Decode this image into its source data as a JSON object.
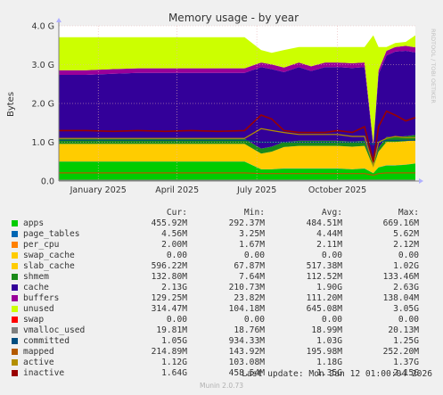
{
  "colors": {
    "background": "#f0f0f0",
    "plot_background": "#ffffff",
    "grid": "#e8b4b4",
    "axis": "#808080"
  },
  "chart_data": {
    "type": "area",
    "title": "Memory usage - by year",
    "ylabel": "Bytes",
    "side_label": "RRDTOOL / TOBI OETIKER",
    "y_ticks": [
      "0.0",
      "1.0 G",
      "2.0 G",
      "3.0 G",
      "4.0 G"
    ],
    "y_tick_values": [
      0,
      1,
      2,
      3,
      4
    ],
    "ylim": [
      0,
      4
    ],
    "y_unit": "GB",
    "x_range": [
      "2024-12-01",
      "2026-01-12"
    ],
    "x_ticks": [
      {
        "label": "January 2025",
        "date": "2025-01-15"
      },
      {
        "label": "April 2025",
        "date": "2025-04-15"
      },
      {
        "label": "July 2025",
        "date": "2025-07-15"
      },
      {
        "label": "October 2025",
        "date": "2025-10-15"
      }
    ],
    "x": [
      "2024-12-01",
      "2025-01-01",
      "2025-02-01",
      "2025-03-01",
      "2025-04-01",
      "2025-05-01",
      "2025-06-01",
      "2025-07-01",
      "2025-07-20",
      "2025-08-01",
      "2025-08-15",
      "2025-09-01",
      "2025-09-15",
      "2025-10-01",
      "2025-10-15",
      "2025-11-01",
      "2025-11-15",
      "2025-11-25",
      "2025-12-01",
      "2025-12-10",
      "2025-12-20",
      "2026-01-01",
      "2026-01-12"
    ],
    "series": [
      {
        "name": "apps",
        "color": "#00cc00",
        "values": [
          0.5,
          0.5,
          0.5,
          0.5,
          0.5,
          0.5,
          0.5,
          0.5,
          0.3,
          0.3,
          0.32,
          0.32,
          0.32,
          0.32,
          0.32,
          0.3,
          0.32,
          0.2,
          0.35,
          0.4,
          0.4,
          0.42,
          0.45
        ]
      },
      {
        "name": "page_tables",
        "color": "#0066b3",
        "values": [
          0.004,
          0.004,
          0.004,
          0.004,
          0.004,
          0.004,
          0.004,
          0.004,
          0.004,
          0.004,
          0.004,
          0.004,
          0.004,
          0.004,
          0.004,
          0.004,
          0.004,
          0.004,
          0.004,
          0.004,
          0.004,
          0.004,
          0.004
        ]
      },
      {
        "name": "per_cpu",
        "color": "#ff8000",
        "values": [
          0.002,
          0.002,
          0.002,
          0.002,
          0.002,
          0.002,
          0.002,
          0.002,
          0.002,
          0.002,
          0.002,
          0.002,
          0.002,
          0.002,
          0.002,
          0.002,
          0.002,
          0.002,
          0.002,
          0.002,
          0.002,
          0.002,
          0.002
        ]
      },
      {
        "name": "swap_cache",
        "color": "#ffcc00",
        "values": [
          0,
          0,
          0,
          0,
          0,
          0,
          0,
          0,
          0,
          0,
          0,
          0,
          0,
          0,
          0,
          0,
          0,
          0,
          0,
          0,
          0,
          0,
          0
        ]
      },
      {
        "name": "slab_cache",
        "color": "#ffcc00",
        "values": [
          0.45,
          0.45,
          0.45,
          0.45,
          0.45,
          0.45,
          0.45,
          0.45,
          0.4,
          0.45,
          0.55,
          0.58,
          0.58,
          0.58,
          0.58,
          0.58,
          0.58,
          0.15,
          0.4,
          0.6,
          0.6,
          0.6,
          0.6
        ]
      },
      {
        "name": "shmem",
        "color": "#1a8a1a",
        "values": [
          0.13,
          0.13,
          0.13,
          0.13,
          0.13,
          0.13,
          0.13,
          0.13,
          0.13,
          0.13,
          0.13,
          0.13,
          0.13,
          0.13,
          0.13,
          0.13,
          0.13,
          0.05,
          0.1,
          0.13,
          0.13,
          0.13,
          0.13
        ]
      },
      {
        "name": "cache",
        "color": "#330099",
        "values": [
          1.65,
          1.65,
          1.68,
          1.7,
          1.7,
          1.7,
          1.7,
          1.7,
          2.1,
          2.0,
          1.8,
          1.9,
          1.8,
          1.9,
          1.9,
          1.9,
          1.9,
          0.5,
          1.9,
          2.1,
          2.2,
          2.2,
          2.13
        ]
      },
      {
        "name": "buffers",
        "color": "#990099",
        "values": [
          0.12,
          0.12,
          0.12,
          0.12,
          0.12,
          0.12,
          0.12,
          0.12,
          0.12,
          0.12,
          0.12,
          0.12,
          0.12,
          0.12,
          0.12,
          0.12,
          0.12,
          0.05,
          0.1,
          0.12,
          0.12,
          0.13,
          0.13
        ]
      },
      {
        "name": "unused",
        "color": "#ccff00",
        "values": [
          0.85,
          0.85,
          0.82,
          0.8,
          0.8,
          0.8,
          0.8,
          0.8,
          0.32,
          0.3,
          0.45,
          0.4,
          0.5,
          0.4,
          0.4,
          0.42,
          0.4,
          2.8,
          0.6,
          0.1,
          0.1,
          0.1,
          0.31
        ]
      },
      {
        "name": "swap",
        "color": "#ff0000",
        "values": [
          0,
          0,
          0,
          0,
          0,
          0,
          0,
          0,
          0,
          0,
          0,
          0,
          0,
          0,
          0,
          0,
          0,
          0,
          0,
          0,
          0,
          0,
          0
        ]
      },
      {
        "name": "vmalloc_used",
        "color": "#808080",
        "values": [
          0.02,
          0.02,
          0.02,
          0.02,
          0.02,
          0.02,
          0.02,
          0.02,
          0.02,
          0.02,
          0.02,
          0.02,
          0.02,
          0.02,
          0.02,
          0.02,
          0.02,
          0.02,
          0.02,
          0.02,
          0.02,
          0.02,
          0.02
        ]
      },
      {
        "name": "committed",
        "color": "#004d80",
        "values": [
          1.05,
          1.05,
          1.05,
          1.05,
          1.05,
          1.05,
          1.05,
          1.05,
          1.0,
          1.0,
          1.0,
          1.0,
          1.0,
          1.0,
          1.0,
          1.0,
          1.0,
          0.95,
          1.0,
          1.05,
          1.05,
          1.05,
          1.05
        ]
      },
      {
        "name": "mapped",
        "color": "#b35a00",
        "values": [
          0.21,
          0.21,
          0.21,
          0.21,
          0.21,
          0.21,
          0.21,
          0.21,
          0.19,
          0.19,
          0.19,
          0.19,
          0.19,
          0.19,
          0.19,
          0.19,
          0.19,
          0.15,
          0.19,
          0.21,
          0.21,
          0.21,
          0.21
        ]
      },
      {
        "name": "active",
        "color": "#b38f00",
        "values": [
          1.1,
          1.1,
          1.1,
          1.1,
          1.1,
          1.1,
          1.1,
          1.1,
          1.35,
          1.3,
          1.25,
          1.2,
          1.2,
          1.2,
          1.2,
          1.15,
          1.15,
          0.4,
          1.0,
          1.1,
          1.15,
          1.12,
          1.12
        ]
      },
      {
        "name": "inactive",
        "color": "#990000",
        "values": [
          1.3,
          1.3,
          1.28,
          1.3,
          1.28,
          1.3,
          1.28,
          1.3,
          1.7,
          1.6,
          1.3,
          1.25,
          1.25,
          1.25,
          1.3,
          1.25,
          1.4,
          0.5,
          1.4,
          1.8,
          1.7,
          1.55,
          1.64
        ]
      }
    ],
    "legend_headers": {
      "cur": "Cur:",
      "min": "Min:",
      "avg": "Avg:",
      "max": "Max:"
    },
    "legend": [
      {
        "name": "apps",
        "color": "#00cc00",
        "cur": "455.92M",
        "min": "292.37M",
        "avg": "484.51M",
        "max": "669.16M"
      },
      {
        "name": "page_tables",
        "color": "#0066b3",
        "cur": "4.56M",
        "min": "3.25M",
        "avg": "4.44M",
        "max": "5.62M"
      },
      {
        "name": "per_cpu",
        "color": "#ff8000",
        "cur": "2.00M",
        "min": "1.67M",
        "avg": "2.11M",
        "max": "2.12M"
      },
      {
        "name": "swap_cache",
        "color": "#ffcc00",
        "cur": "0.00",
        "min": "0.00",
        "avg": "0.00",
        "max": "0.00"
      },
      {
        "name": "slab_cache",
        "color": "#ffcc00",
        "cur": "596.22M",
        "min": "67.87M",
        "avg": "517.38M",
        "max": "1.02G"
      },
      {
        "name": "shmem",
        "color": "#1a8a1a",
        "cur": "132.80M",
        "min": "7.64M",
        "avg": "112.52M",
        "max": "133.46M"
      },
      {
        "name": "cache",
        "color": "#330099",
        "cur": "2.13G",
        "min": "210.73M",
        "avg": "1.90G",
        "max": "2.63G"
      },
      {
        "name": "buffers",
        "color": "#990099",
        "cur": "129.25M",
        "min": "23.82M",
        "avg": "111.20M",
        "max": "138.04M"
      },
      {
        "name": "unused",
        "color": "#ccff00",
        "cur": "314.47M",
        "min": "104.18M",
        "avg": "645.08M",
        "max": "3.05G"
      },
      {
        "name": "swap",
        "color": "#ff0000",
        "cur": "0.00",
        "min": "0.00",
        "avg": "0.00",
        "max": "0.00"
      },
      {
        "name": "vmalloc_used",
        "color": "#808080",
        "cur": "19.81M",
        "min": "18.76M",
        "avg": "18.99M",
        "max": "20.13M"
      },
      {
        "name": "committed",
        "color": "#004d80",
        "cur": "1.05G",
        "min": "934.33M",
        "avg": "1.03G",
        "max": "1.25G"
      },
      {
        "name": "mapped",
        "color": "#b35a00",
        "cur": "214.89M",
        "min": "143.92M",
        "avg": "195.98M",
        "max": "252.20M"
      },
      {
        "name": "active",
        "color": "#b38f00",
        "cur": "1.12G",
        "min": "103.08M",
        "avg": "1.18G",
        "max": "1.37G"
      },
      {
        "name": "inactive",
        "color": "#990000",
        "cur": "1.64G",
        "min": "458.54M",
        "avg": "1.35G",
        "max": "2.15G"
      }
    ]
  },
  "last_update": "Last update: Mon Jan 12 01:00:04 2026",
  "footer": "Munin 2.0.73"
}
